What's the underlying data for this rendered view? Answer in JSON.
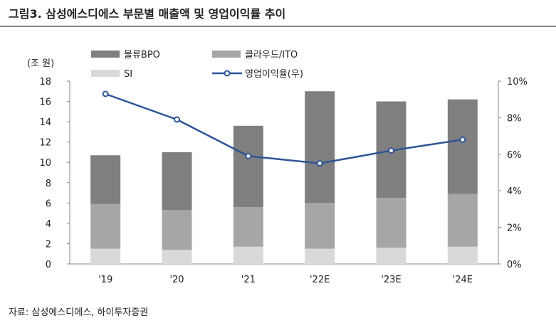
{
  "title": "그림3.  삼성에스디에스 부문별 매출액 및 영업이익률 추이",
  "source": "자료: 삼성에스디에스, 하이투자증권",
  "chart_data": {
    "type": "bar",
    "stacked": true,
    "categories": [
      "'19",
      "'20",
      "'21",
      "'22E",
      "'23E",
      "'24E"
    ],
    "ylabel": "(조 원)",
    "ylim": [
      0,
      18
    ],
    "yticks": [
      0,
      2,
      4,
      6,
      8,
      10,
      12,
      14,
      16,
      18
    ],
    "y2lim": [
      0,
      10
    ],
    "y2ticks": [
      "0%",
      "2%",
      "4%",
      "6%",
      "8%",
      "10%"
    ],
    "legend_placement": "top",
    "series": [
      {
        "name": "SI",
        "kind": "bar",
        "color": "#d9d9d9",
        "values": [
          1.5,
          1.4,
          1.7,
          1.5,
          1.6,
          1.7
        ]
      },
      {
        "name": "클라우드/ITO",
        "kind": "bar",
        "color": "#a6a6a6",
        "values": [
          4.4,
          3.9,
          3.9,
          4.5,
          4.9,
          5.2
        ]
      },
      {
        "name": "물류BPO",
        "kind": "bar",
        "color": "#7f7f7f",
        "values": [
          4.8,
          5.7,
          8.0,
          11.0,
          9.5,
          9.3
        ]
      },
      {
        "name": "영업이익율(우)",
        "kind": "line",
        "axis": "right",
        "unit": "%",
        "color": "#2f5597",
        "values": [
          9.3,
          7.9,
          5.9,
          5.5,
          6.2,
          6.8
        ]
      }
    ]
  }
}
